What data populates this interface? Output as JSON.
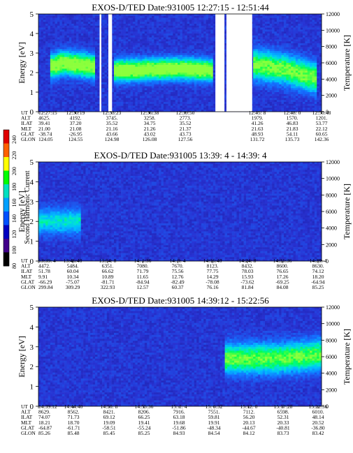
{
  "colorbar": {
    "label": "Second Harmonic Current",
    "ticks": [
      "240",
      "220",
      "200",
      "180",
      "160",
      "140",
      "120",
      "100",
      "80"
    ],
    "colors": [
      "#e00000",
      "#ff6000",
      "#ffff00",
      "#00ff00",
      "#00e0c0",
      "#00a0ff",
      "#0050ff",
      "#0000c0",
      "#40008a",
      "#000000"
    ]
  },
  "chart_data": [
    {
      "type": "heatmap",
      "title": "EXOS-D/TED    Date:931005    12:27:15 - 12:51:44",
      "ylabel": "Energy [eV]",
      "y2label": "Temperature [K]",
      "ylim": [
        0,
        5
      ],
      "y2lim": [
        0,
        12000
      ],
      "yticks": [
        0,
        1,
        2,
        3,
        4,
        5
      ],
      "y2ticks": [
        0,
        2000,
        4000,
        6000,
        8000,
        10000,
        12000
      ],
      "data_gaps": [
        [
          0.216,
          0.222
        ],
        [
          0.247,
          0.26
        ],
        [
          0.625,
          0.657
        ],
        [
          0.664,
          0.755
        ]
      ],
      "emission_bands": [
        {
          "x": [
            0.04,
            0.09,
            0.2
          ],
          "center": [
            2.3,
            2.5,
            2.3
          ],
          "width": 0.55,
          "peak": 0.95
        },
        {
          "x": [
            0.27,
            0.5,
            0.62
          ],
          "center": [
            2.1,
            2.2,
            2.1
          ],
          "width": 0.5,
          "peak": 1.0
        },
        {
          "x": [
            0.76,
            0.86,
            0.98
          ],
          "center": [
            2.4,
            2.2,
            1.7
          ],
          "width": 0.7,
          "peak": 0.8
        }
      ],
      "table_labels": [
        "UT",
        "ALT",
        "ILAT",
        "MLT",
        "GLAT",
        "GLON"
      ],
      "columns": [
        [
          "12:27:15",
          "4625.",
          "39.41",
          "21.00",
          "-38.74",
          "124.05"
        ],
        [
          "12:30:19",
          "4192.",
          "37.20",
          "21.08",
          "-26.95",
          "124.55"
        ],
        [
          "12:33:23",
          "3745.",
          "35.52",
          "21.16",
          "43.66",
          "124.98"
        ],
        [
          "12:36:38",
          "3258.",
          "34.75",
          "21.26",
          "43.02",
          "126.08"
        ],
        [
          "12:39:50",
          "2773.",
          "35.52",
          "21.37",
          "43.73",
          "127.56"
        ],
        [
          "12:45: 8",
          "1979.",
          "41.26",
          "21.63",
          "48.93",
          "131.72"
        ],
        [
          "12:48: 0",
          "1570.",
          "46.83",
          "21.83",
          "54.11",
          "135.73"
        ],
        [
          "12:50:48",
          "1201.",
          "53.77",
          "22.12",
          "60.65",
          "142.36"
        ]
      ]
    },
    {
      "type": "heatmap",
      "title": "EXOS-D/TED    Date:931005    13:39: 4 - 14:39: 4",
      "ylabel": "Energy [eV]",
      "y2label": "Temperature [K]",
      "ylim": [
        0,
        5
      ],
      "y2lim": [
        0,
        12000
      ],
      "yticks": [
        0,
        1,
        2,
        3,
        4,
        5
      ],
      "y2ticks": [
        0,
        2000,
        4000,
        6000,
        8000,
        10000,
        12000
      ],
      "data_gaps": [],
      "emission_bands": [
        {
          "x": [
            0.0,
            0.05,
            0.15
          ],
          "center": [
            2.0,
            2.0,
            2.0
          ],
          "width": 0.6,
          "peak": 0.45
        }
      ],
      "table_labels": [
        "UT",
        "ALT",
        "ILAT",
        "MLT",
        "GLAT",
        "GLON"
      ],
      "columns": [
        [
          "13:39: 4",
          "4472.",
          "51.78",
          "9.91",
          "-66.29",
          "299.84"
        ],
        [
          "13:46:40",
          "5484.",
          "60.04",
          "10.34",
          "-75.07",
          "309.29"
        ],
        [
          "13:54: 8",
          "6351.",
          "66.62",
          "10.89",
          "-81.71",
          "322.93"
        ],
        [
          "14: 1:36",
          "7080.",
          "71.79",
          "11.65",
          "-84.94",
          "12.57"
        ],
        [
          "14: 9: 4",
          "7670.",
          "75.56",
          "12.76",
          "-82.49",
          "60.37"
        ],
        [
          "14:16:40",
          "8123.",
          "77.75",
          "14.29",
          "-78.08",
          "76.16"
        ],
        [
          "14:24: 8",
          "8432.",
          "78.03",
          "15.93",
          "-73.62",
          "81.84"
        ],
        [
          "14:31:36",
          "8600.",
          "76.65",
          "17.26",
          "-69.25",
          "84.08"
        ],
        [
          "14:39: 4",
          "8630.",
          "74.12",
          "18.20",
          "-64.94",
          "85.25"
        ]
      ]
    },
    {
      "type": "heatmap",
      "title": "EXOS-D/TED    Date:931005    14:39:12 - 15:22:56",
      "ylabel": "Energy [eV]",
      "y2label": "Temperature [K]",
      "ylim": [
        0,
        5
      ],
      "y2lim": [
        0,
        12000
      ],
      "yticks": [
        0,
        1,
        2,
        3,
        4,
        5
      ],
      "y2ticks": [
        0,
        2000,
        4000,
        6000,
        8000,
        10000,
        12000
      ],
      "data_gaps": [],
      "emission_bands": [
        {
          "x": [
            0.66,
            0.85,
            1.0
          ],
          "center": [
            2.4,
            2.4,
            2.6
          ],
          "width": 0.7,
          "peak": 0.75
        }
      ],
      "table_labels": [
        "UT",
        "ALT",
        "ILAT",
        "MLT",
        "GLAT",
        "GLON"
      ],
      "columns": [
        [
          "14:39:12",
          "8629.",
          "74.07",
          "18.21",
          "-64.87",
          "85.26"
        ],
        [
          "14:44:40",
          "8562.",
          "71.73",
          "18.70",
          "-61.71",
          "85.48"
        ],
        [
          "14:50: 8",
          "8421.",
          "69.12",
          "19.09",
          "-58.51",
          "85.45"
        ],
        [
          "14:55:36",
          "8206.",
          "66.25",
          "19.41",
          "-55.24",
          "85.25"
        ],
        [
          "15: 1: 4",
          "7916.",
          "63.18",
          "19.68",
          "-51.86",
          "84.93"
        ],
        [
          "15: 6:32",
          "7551.",
          "59.81",
          "19.91",
          "-48.34",
          "84.54"
        ],
        [
          "15:12: 0",
          "7112.",
          "56.20",
          "20.13",
          "-44.67",
          "84.12"
        ],
        [
          "15:17:28",
          "6598.",
          "52.31",
          "20.33",
          "-40.81",
          "83.73"
        ],
        [
          "15:22:56",
          "6010.",
          "48.14",
          "20.52",
          "-36.80",
          "83.42"
        ]
      ]
    }
  ]
}
